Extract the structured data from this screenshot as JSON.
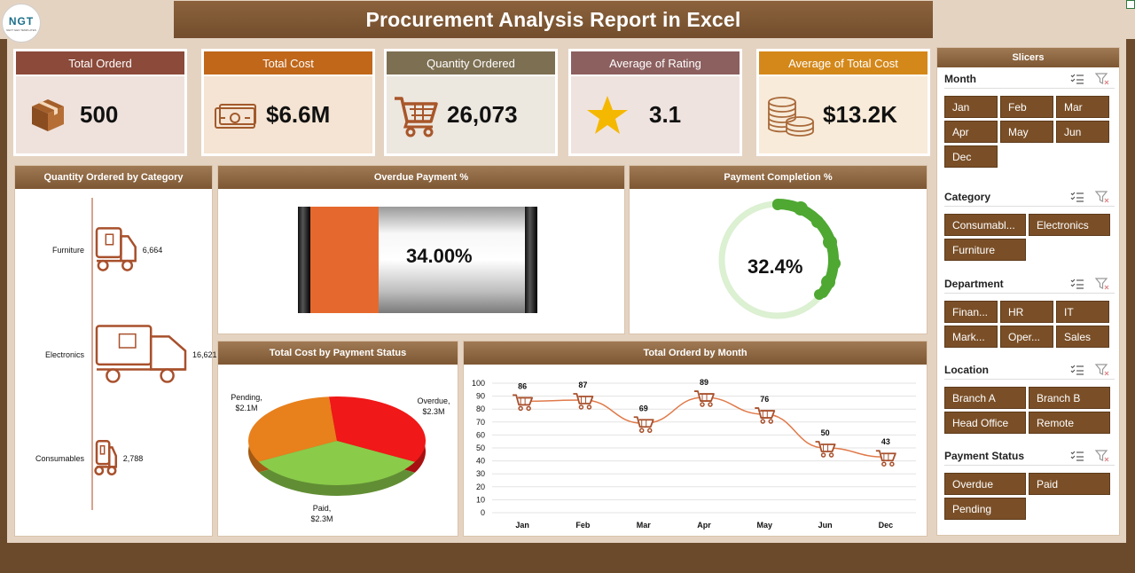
{
  "title": "Procurement Analysis Report in Excel",
  "logo": {
    "text": "NGT",
    "subtext": "NEXT GEN TEMPLATES"
  },
  "kpis": [
    {
      "label": "Total Orderd",
      "value": "500",
      "icon": "box-icon",
      "header_color": "#8b4a3a",
      "body_color": "#efe2dc"
    },
    {
      "label": "Total Cost",
      "value": "$6.6M",
      "icon": "cash-icon",
      "header_color": "#c0671a",
      "body_color": "#f5e4d3"
    },
    {
      "label": "Quantity Ordered",
      "value": "26,073",
      "icon": "cart-icon",
      "header_color": "#7d6f52",
      "body_color": "#ece7df"
    },
    {
      "label": "Average of Rating",
      "value": "3.1",
      "icon": "star-icon",
      "header_color": "#8d6060",
      "body_color": "#efe3e0"
    },
    {
      "label": "Average of Total Cost",
      "value": "$13.2K",
      "icon": "coins-icon",
      "header_color": "#d4881a",
      "body_color": "#f8ebd9"
    }
  ],
  "panels": {
    "qty_by_category": "Quantity Ordered by Category",
    "overdue": "Overdue Payment %",
    "completion": "Payment Completion %",
    "cost_by_status": "Total Cost by Payment Status",
    "ordered_by_month": "Total Orderd by Month"
  },
  "overdue_value": "34.00%",
  "completion_value": "32.4%",
  "colors": {
    "accent": "#7a4f27",
    "orange": "#e07030",
    "green": "#4ea832"
  },
  "chart_data": [
    {
      "type": "bar",
      "title": "Quantity Ordered by Category",
      "categories": [
        "Furniture",
        "Electronics",
        "Consumables"
      ],
      "values": [
        6664,
        16621,
        2788
      ],
      "labels": [
        "6,664",
        "16,621",
        "2,788"
      ]
    },
    {
      "type": "pie",
      "title": "Total Cost by Payment Status",
      "categories": [
        "Pending",
        "Overdue",
        "Paid"
      ],
      "values": [
        2.1,
        2.3,
        2.3
      ],
      "labels": [
        "Pending,\n$2.1M",
        "Overdue,\n$2.3M",
        "Paid,\n$2.3M"
      ],
      "label_lines": [
        [
          "Pending,",
          "$2.1M"
        ],
        [
          "Overdue,",
          "$2.3M"
        ],
        [
          "Paid,",
          "$2.3M"
        ]
      ],
      "colors": [
        "#e8801c",
        "#f01818",
        "#8acb4a"
      ]
    },
    {
      "type": "line",
      "title": "Total Orderd by Month",
      "categories": [
        "Jan",
        "Feb",
        "Mar",
        "Apr",
        "May",
        "Jun",
        "Dec"
      ],
      "values": [
        86,
        87,
        69,
        89,
        76,
        50,
        43
      ],
      "ylim": [
        0,
        100
      ],
      "yticks": [
        0,
        10,
        20,
        30,
        40,
        50,
        60,
        70,
        80,
        90,
        100
      ]
    }
  ],
  "slicers": {
    "title": "Slicers",
    "groups": [
      {
        "name": "Month",
        "items": [
          "Jan",
          "Feb",
          "Mar",
          "Apr",
          "May",
          "Jun",
          "Dec"
        ]
      },
      {
        "name": "Category",
        "items": [
          "Consumabl...",
          "Electronics",
          "Furniture"
        ]
      },
      {
        "name": "Department",
        "items": [
          "Finan...",
          "HR",
          "IT",
          "Mark...",
          "Oper...",
          "Sales"
        ]
      },
      {
        "name": "Location",
        "items": [
          "Branch A",
          "Branch B",
          "Head Office",
          "Remote"
        ]
      },
      {
        "name": "Payment Status",
        "items": [
          "Overdue",
          "Paid",
          "Pending"
        ]
      }
    ]
  }
}
